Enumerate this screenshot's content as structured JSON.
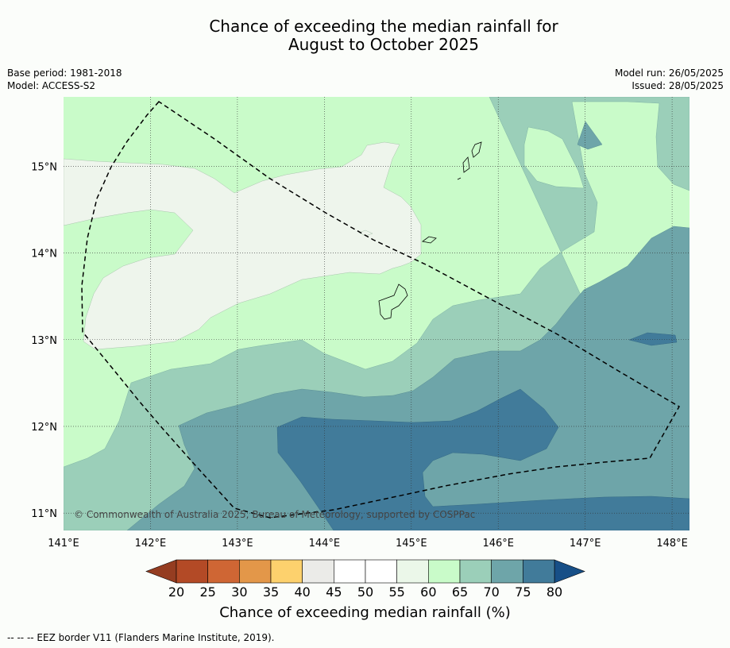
{
  "title": {
    "line1": "Chance of exceeding the median rainfall for",
    "line2": "August to October 2025"
  },
  "meta": {
    "base_period": "Base period: 1981-2018",
    "model": "Model: ACCESS-S2",
    "model_run": "Model run: 26/05/2025",
    "issued": "Issued: 28/05/2025"
  },
  "map": {
    "lon_range": [
      141.0,
      148.2
    ],
    "lat_range": [
      10.8,
      15.8
    ],
    "lon_ticks": [
      {
        "value": 141,
        "label": "141°E"
      },
      {
        "value": 142,
        "label": "142°E"
      },
      {
        "value": 143,
        "label": "143°E"
      },
      {
        "value": 144,
        "label": "144°E"
      },
      {
        "value": 145,
        "label": "145°E"
      },
      {
        "value": 146,
        "label": "146°E"
      },
      {
        "value": 147,
        "label": "147°E"
      },
      {
        "value": 148,
        "label": "148°E"
      }
    ],
    "lat_ticks": [
      {
        "value": 15,
        "label": "15°N"
      },
      {
        "value": 14,
        "label": "14°N"
      },
      {
        "value": 13,
        "label": "13°N"
      },
      {
        "value": 12,
        "label": "12°N"
      },
      {
        "value": 11,
        "label": "11°N"
      }
    ],
    "copyright": "© Commonwealth of Australia 2025, Bureau of Meteorology, supported by COSPPac",
    "zone_colors": {
      "55-60": "#eef5ec",
      "60-65": "#c9fbc9",
      "65-70": "#9bcfb9",
      "70-75": "#6ea5a9",
      "75-80": "#417b9a"
    }
  },
  "colorbar": {
    "label": "Chance of exceeding median rainfall (%)",
    "ticks": [
      "20",
      "25",
      "30",
      "35",
      "40",
      "45",
      "50",
      "55",
      "60",
      "65",
      "70",
      "75",
      "80"
    ],
    "under_color": "#953d21",
    "over_color": "#174f87",
    "colors": [
      "#b34a26",
      "#cf6634",
      "#e39749",
      "#fdd16d",
      "#ebebe8",
      "#ffffff",
      "#ffffff",
      "#ebf7e9",
      "#c9fbc9",
      "#9bcfb9",
      "#6ea5a9",
      "#417b9a"
    ]
  },
  "footnote": "--  --  -- EEZ border V11 (Flanders Marine Institute, 2019)."
}
